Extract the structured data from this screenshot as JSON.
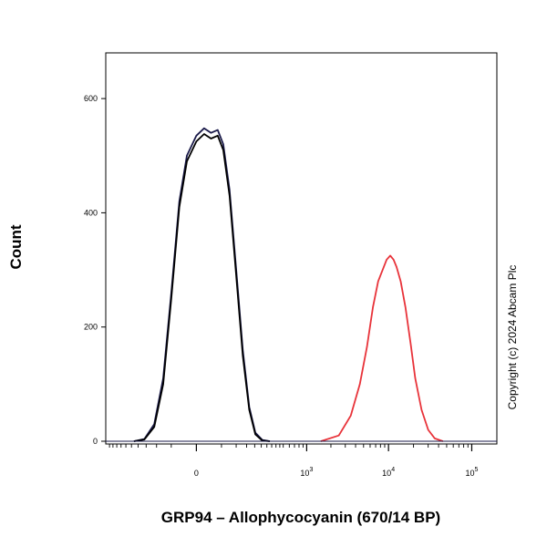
{
  "chart_data": {
    "type": "line",
    "title": "",
    "xlabel": "GRP94 – Allophycocyanin (670/14 BP)",
    "ylabel": "Count",
    "xscale": "biexponential",
    "ylim": [
      0,
      680
    ],
    "y_ticks": [
      0,
      200,
      400,
      600
    ],
    "x_ticks": [
      {
        "value": 0,
        "base": "0",
        "exp": ""
      },
      {
        "value": 1000,
        "base": "10",
        "exp": "3"
      },
      {
        "value": 10000,
        "base": "10",
        "exp": "4"
      },
      {
        "value": 100000,
        "base": "10",
        "exp": "5"
      }
    ],
    "grid": false,
    "legend": "none",
    "series": [
      {
        "color": "#1a1a4a",
        "points": [
          [
            -230,
            0
          ],
          [
            -160,
            4
          ],
          [
            -110,
            30
          ],
          [
            -75,
            110
          ],
          [
            -50,
            260
          ],
          [
            -30,
            420
          ],
          [
            -15,
            500
          ],
          [
            0,
            535
          ],
          [
            12,
            548
          ],
          [
            25,
            540
          ],
          [
            40,
            545
          ],
          [
            55,
            520
          ],
          [
            75,
            440
          ],
          [
            100,
            300
          ],
          [
            130,
            160
          ],
          [
            165,
            60
          ],
          [
            205,
            15
          ],
          [
            260,
            2
          ],
          [
            330,
            0
          ]
        ]
      },
      {
        "color": "#000000",
        "points": [
          [
            -230,
            0
          ],
          [
            -160,
            3
          ],
          [
            -110,
            25
          ],
          [
            -75,
            100
          ],
          [
            -50,
            250
          ],
          [
            -30,
            410
          ],
          [
            -15,
            490
          ],
          [
            0,
            525
          ],
          [
            12,
            538
          ],
          [
            25,
            530
          ],
          [
            40,
            535
          ],
          [
            55,
            510
          ],
          [
            75,
            430
          ],
          [
            100,
            290
          ],
          [
            130,
            150
          ],
          [
            165,
            55
          ],
          [
            205,
            12
          ],
          [
            260,
            1
          ],
          [
            330,
            0
          ]
        ]
      },
      {
        "color": "#e8333a",
        "points": [
          [
            1500,
            0
          ],
          [
            2500,
            10
          ],
          [
            3500,
            45
          ],
          [
            4500,
            100
          ],
          [
            5500,
            165
          ],
          [
            6500,
            235
          ],
          [
            7500,
            280
          ],
          [
            8500,
            300
          ],
          [
            9500,
            318
          ],
          [
            10500,
            325
          ],
          [
            11500,
            318
          ],
          [
            12500,
            305
          ],
          [
            14000,
            280
          ],
          [
            16000,
            235
          ],
          [
            18500,
            170
          ],
          [
            21000,
            110
          ],
          [
            25000,
            55
          ],
          [
            30000,
            20
          ],
          [
            36000,
            5
          ],
          [
            45000,
            0
          ]
        ]
      }
    ]
  },
  "copyright": "Copyright (c) 2024 Abcam Plc"
}
